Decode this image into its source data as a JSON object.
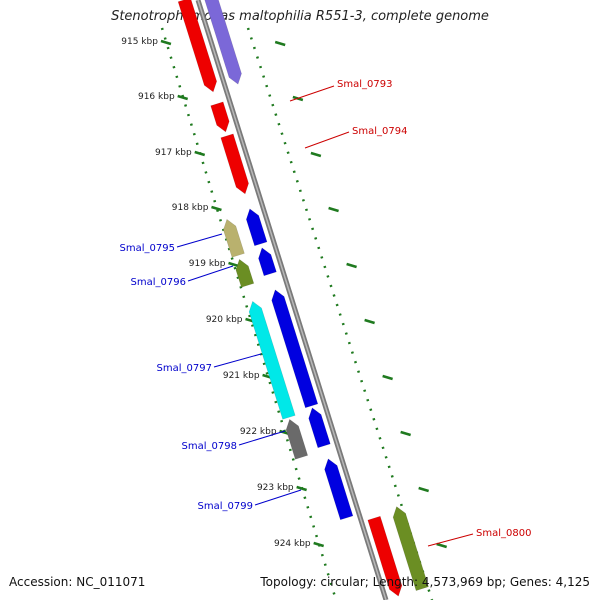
{
  "title": "Stenotrophomonas maltophilia R551-3, complete genome",
  "footer": {
    "accession": "Accession: NC_011071",
    "topology": "Topology: circular; Length: 4,573,969 bp; Genes: 4,125"
  },
  "colors": {
    "backbone": "#8c8c8c",
    "tick": "#1f7a1f",
    "forward_label": "#cc0000",
    "reverse_label": "#0000cc"
  },
  "ticks": [
    "915 kbp",
    "916 kbp",
    "917 kbp",
    "918 kbp",
    "919 kbp",
    "920 kbp",
    "921 kbp",
    "922 kbp",
    "923 kbp",
    "924 kbp"
  ],
  "forward_labels": [
    "Smal_0793",
    "Smal_0794",
    "Smal_0800"
  ],
  "reverse_labels": [
    "Smal_0795",
    "Smal_0796",
    "Smal_0797",
    "Smal_0798",
    "Smal_0799"
  ]
}
